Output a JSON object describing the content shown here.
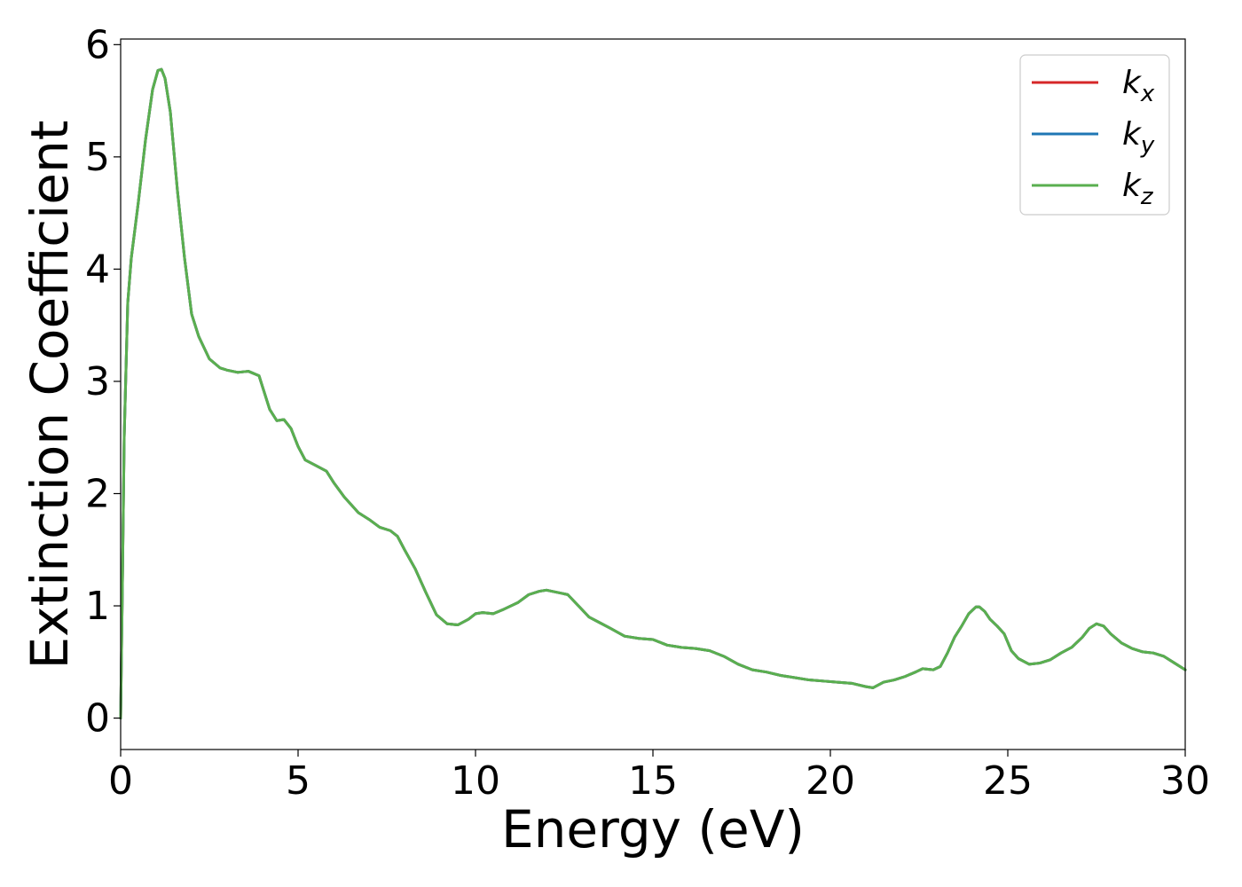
{
  "chart_data": {
    "type": "line",
    "title": "",
    "xlabel": "Energy (eV)",
    "ylabel": "Extinction Coefficient",
    "xlim": [
      0,
      30
    ],
    "ylim": [
      -0.28,
      6.05
    ],
    "xticks": [
      0,
      5,
      10,
      15,
      20,
      25,
      30
    ],
    "yticks": [
      0,
      1,
      2,
      3,
      4,
      5,
      6
    ],
    "grid": false,
    "legend_position": "top-right",
    "x": [
      0.0,
      0.05,
      0.1,
      0.2,
      0.3,
      0.5,
      0.7,
      0.9,
      1.05,
      1.15,
      1.25,
      1.4,
      1.6,
      1.8,
      2.0,
      2.2,
      2.5,
      2.8,
      3.0,
      3.3,
      3.6,
      3.9,
      4.0,
      4.2,
      4.4,
      4.6,
      4.8,
      5.0,
      5.2,
      5.5,
      5.8,
      6.0,
      6.3,
      6.7,
      7.0,
      7.3,
      7.6,
      7.8,
      8.0,
      8.3,
      8.6,
      8.9,
      9.2,
      9.5,
      9.8,
      10.0,
      10.2,
      10.5,
      10.8,
      11.2,
      11.5,
      11.8,
      12.0,
      12.3,
      12.6,
      12.9,
      13.2,
      13.5,
      13.8,
      14.2,
      14.6,
      15.0,
      15.4,
      15.8,
      16.2,
      16.6,
      17.0,
      17.4,
      17.8,
      18.2,
      18.6,
      19.0,
      19.4,
      19.8,
      20.2,
      20.6,
      21.0,
      21.2,
      21.5,
      21.8,
      22.1,
      22.4,
      22.6,
      22.9,
      23.1,
      23.3,
      23.5,
      23.7,
      23.9,
      24.1,
      24.2,
      24.35,
      24.5,
      24.7,
      24.9,
      25.1,
      25.3,
      25.6,
      25.9,
      26.2,
      26.5,
      26.8,
      27.1,
      27.3,
      27.5,
      27.7,
      27.9,
      28.2,
      28.5,
      28.8,
      29.1,
      29.4,
      29.7,
      30.0
    ],
    "series": [
      {
        "name": "k_x",
        "color": "#d62728",
        "values": [
          0.0,
          1.2,
          2.5,
          3.7,
          4.1,
          4.6,
          5.15,
          5.6,
          5.77,
          5.78,
          5.7,
          5.4,
          4.7,
          4.1,
          3.6,
          3.4,
          3.2,
          3.12,
          3.1,
          3.08,
          3.09,
          3.05,
          2.95,
          2.75,
          2.65,
          2.66,
          2.58,
          2.42,
          2.3,
          2.25,
          2.2,
          2.1,
          1.97,
          1.83,
          1.77,
          1.7,
          1.67,
          1.62,
          1.5,
          1.33,
          1.12,
          0.92,
          0.84,
          0.83,
          0.88,
          0.93,
          0.94,
          0.93,
          0.97,
          1.03,
          1.1,
          1.13,
          1.14,
          1.12,
          1.1,
          1.0,
          0.9,
          0.85,
          0.8,
          0.73,
          0.71,
          0.7,
          0.65,
          0.63,
          0.62,
          0.6,
          0.55,
          0.48,
          0.43,
          0.41,
          0.38,
          0.36,
          0.34,
          0.33,
          0.32,
          0.31,
          0.28,
          0.27,
          0.32,
          0.34,
          0.37,
          0.41,
          0.44,
          0.43,
          0.46,
          0.58,
          0.72,
          0.82,
          0.93,
          0.99,
          0.99,
          0.95,
          0.88,
          0.82,
          0.75,
          0.6,
          0.53,
          0.48,
          0.49,
          0.52,
          0.58,
          0.63,
          0.72,
          0.8,
          0.84,
          0.82,
          0.75,
          0.67,
          0.62,
          0.59,
          0.58,
          0.55,
          0.49,
          0.43
        ]
      },
      {
        "name": "k_y",
        "color": "#1f77b4",
        "values": [
          0.0,
          1.2,
          2.5,
          3.7,
          4.1,
          4.6,
          5.15,
          5.6,
          5.77,
          5.78,
          5.7,
          5.4,
          4.7,
          4.1,
          3.6,
          3.4,
          3.2,
          3.12,
          3.1,
          3.08,
          3.09,
          3.05,
          2.95,
          2.75,
          2.65,
          2.66,
          2.58,
          2.42,
          2.3,
          2.25,
          2.2,
          2.1,
          1.97,
          1.83,
          1.77,
          1.7,
          1.67,
          1.62,
          1.5,
          1.33,
          1.12,
          0.92,
          0.84,
          0.83,
          0.88,
          0.93,
          0.94,
          0.93,
          0.97,
          1.03,
          1.1,
          1.13,
          1.14,
          1.12,
          1.1,
          1.0,
          0.9,
          0.85,
          0.8,
          0.73,
          0.71,
          0.7,
          0.65,
          0.63,
          0.62,
          0.6,
          0.55,
          0.48,
          0.43,
          0.41,
          0.38,
          0.36,
          0.34,
          0.33,
          0.32,
          0.31,
          0.28,
          0.27,
          0.32,
          0.34,
          0.37,
          0.41,
          0.44,
          0.43,
          0.46,
          0.58,
          0.72,
          0.82,
          0.93,
          0.99,
          0.99,
          0.95,
          0.88,
          0.82,
          0.75,
          0.6,
          0.53,
          0.48,
          0.49,
          0.52,
          0.58,
          0.63,
          0.72,
          0.8,
          0.84,
          0.82,
          0.75,
          0.67,
          0.62,
          0.59,
          0.58,
          0.55,
          0.49,
          0.43
        ]
      },
      {
        "name": "k_z",
        "color": "#5aaf4f",
        "values": [
          0.0,
          1.2,
          2.5,
          3.7,
          4.1,
          4.6,
          5.15,
          5.6,
          5.77,
          5.78,
          5.7,
          5.4,
          4.7,
          4.1,
          3.6,
          3.4,
          3.2,
          3.12,
          3.1,
          3.08,
          3.09,
          3.05,
          2.95,
          2.75,
          2.65,
          2.66,
          2.58,
          2.42,
          2.3,
          2.25,
          2.2,
          2.1,
          1.97,
          1.83,
          1.77,
          1.7,
          1.67,
          1.62,
          1.5,
          1.33,
          1.12,
          0.92,
          0.84,
          0.83,
          0.88,
          0.93,
          0.94,
          0.93,
          0.97,
          1.03,
          1.1,
          1.13,
          1.14,
          1.12,
          1.1,
          1.0,
          0.9,
          0.85,
          0.8,
          0.73,
          0.71,
          0.7,
          0.65,
          0.63,
          0.62,
          0.6,
          0.55,
          0.48,
          0.43,
          0.41,
          0.38,
          0.36,
          0.34,
          0.33,
          0.32,
          0.31,
          0.28,
          0.27,
          0.32,
          0.34,
          0.37,
          0.41,
          0.44,
          0.43,
          0.46,
          0.58,
          0.72,
          0.82,
          0.93,
          0.99,
          0.99,
          0.95,
          0.88,
          0.82,
          0.75,
          0.6,
          0.53,
          0.48,
          0.49,
          0.52,
          0.58,
          0.63,
          0.72,
          0.8,
          0.84,
          0.82,
          0.75,
          0.67,
          0.62,
          0.59,
          0.58,
          0.55,
          0.49,
          0.43
        ]
      }
    ],
    "legend": [
      {
        "base": "k",
        "sub": "x",
        "color": "#d62728"
      },
      {
        "base": "k",
        "sub": "y",
        "color": "#1f77b4"
      },
      {
        "base": "k",
        "sub": "z",
        "color": "#5aaf4f"
      }
    ]
  }
}
